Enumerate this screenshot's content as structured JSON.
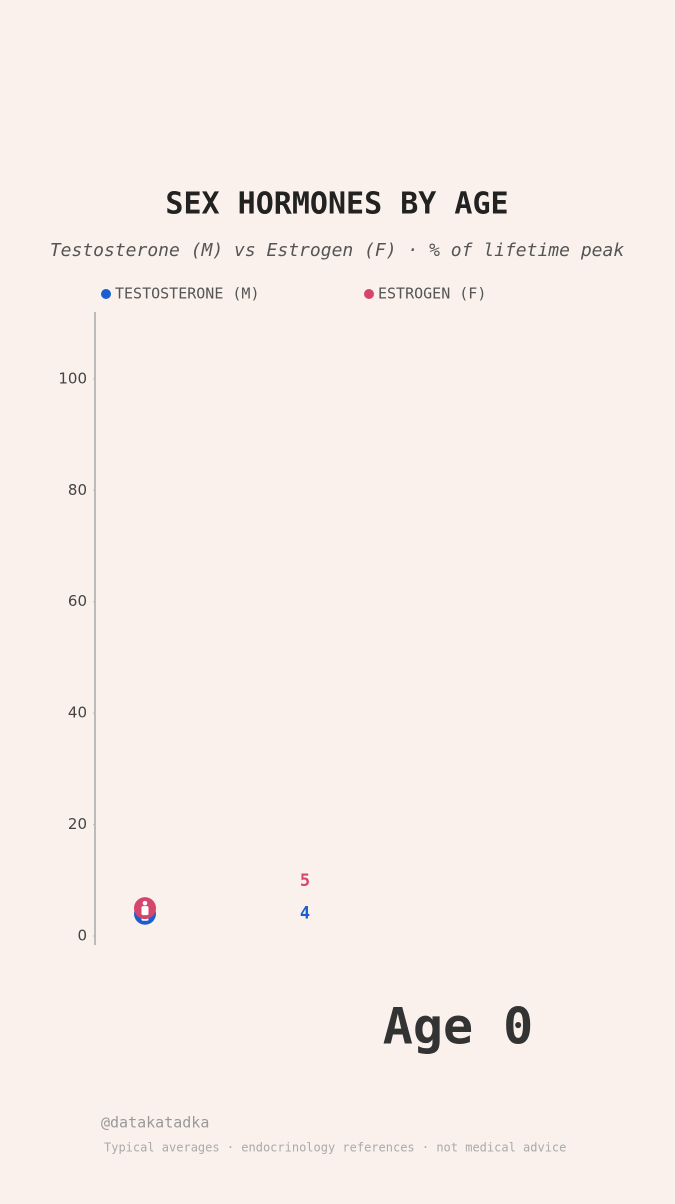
{
  "chart_data": {
    "type": "line",
    "title": "SEX HORMONES BY AGE",
    "subtitle": "Testosterone (M) vs Estrogen (F) · % of lifetime peak",
    "x": [
      0
    ],
    "series": [
      {
        "name": "TESTOSTERONE (M)",
        "color": "#1b5fcf",
        "values": [
          4
        ]
      },
      {
        "name": "ESTROGEN (F)",
        "color": "#d6456b",
        "values": [
          5
        ]
      }
    ],
    "ylim": [
      0,
      112
    ],
    "yticks": [
      0,
      20,
      40,
      60,
      80,
      100
    ],
    "age_label": "Age 0",
    "credit": "@datakatadka",
    "footnote": "Typical averages · endocrinology references · not medical advice"
  }
}
